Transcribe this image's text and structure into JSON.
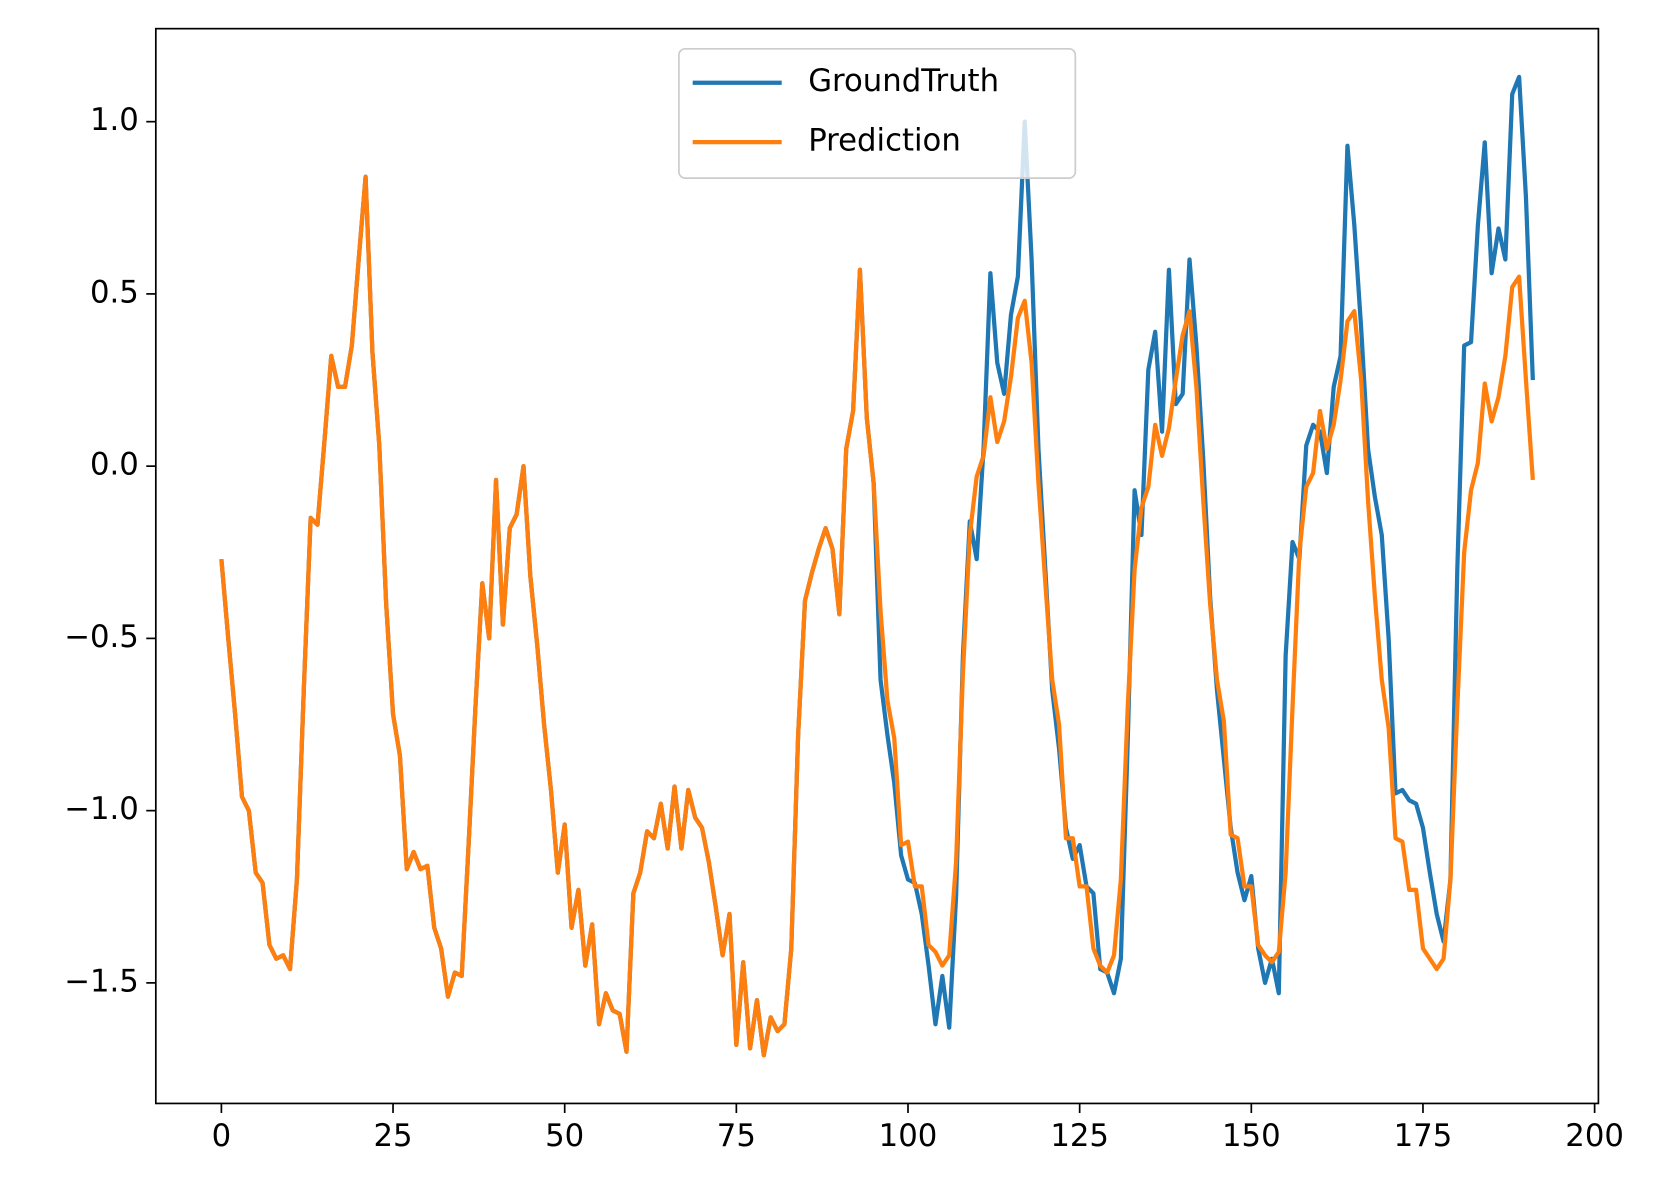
{
  "chart_data": {
    "type": "line",
    "x": [
      0,
      1,
      2,
      3,
      4,
      5,
      6,
      7,
      8,
      9,
      10,
      11,
      12,
      13,
      14,
      15,
      16,
      17,
      18,
      19,
      20,
      21,
      22,
      23,
      24,
      25,
      26,
      27,
      28,
      29,
      30,
      31,
      32,
      33,
      34,
      35,
      36,
      37,
      38,
      39,
      40,
      41,
      42,
      43,
      44,
      45,
      46,
      47,
      48,
      49,
      50,
      51,
      52,
      53,
      54,
      55,
      56,
      57,
      58,
      59,
      60,
      61,
      62,
      63,
      64,
      65,
      66,
      67,
      68,
      69,
      70,
      71,
      72,
      73,
      74,
      75,
      76,
      77,
      78,
      79,
      80,
      81,
      82,
      83,
      84,
      85,
      86,
      87,
      88,
      89,
      90,
      91,
      92,
      93,
      94,
      95,
      96,
      97,
      98,
      99,
      100,
      101,
      102,
      103,
      104,
      105,
      106,
      107,
      108,
      109,
      110,
      111,
      112,
      113,
      114,
      115,
      116,
      117,
      118,
      119,
      120,
      121,
      122,
      123,
      124,
      125,
      126,
      127,
      128,
      129,
      130,
      131,
      132,
      133,
      134,
      135,
      136,
      137,
      138,
      139,
      140,
      141,
      142,
      143,
      144,
      145,
      146,
      147,
      148,
      149,
      150,
      151,
      152,
      153,
      154,
      155,
      156,
      157,
      158,
      159,
      160,
      161,
      162,
      163,
      164,
      165,
      166,
      167,
      168,
      169,
      170,
      171,
      172,
      173,
      174,
      175,
      176,
      177,
      178,
      179,
      180,
      181,
      182,
      183,
      184,
      185,
      186,
      187,
      188,
      189,
      190,
      191
    ],
    "series": [
      {
        "name": "GroundTruth",
        "color": "#1f77b4",
        "values": [
          -0.27,
          -0.5,
          -0.72,
          -0.96,
          -1.0,
          -1.18,
          -1.21,
          -1.39,
          -1.43,
          -1.42,
          -1.46,
          -1.2,
          -0.65,
          -0.15,
          -0.17,
          0.07,
          0.32,
          0.23,
          0.23,
          0.35,
          0.6,
          0.84,
          0.33,
          0.06,
          -0.4,
          -0.72,
          -0.84,
          -1.17,
          -1.12,
          -1.17,
          -1.16,
          -1.34,
          -1.4,
          -1.54,
          -1.47,
          -1.48,
          -1.1,
          -0.7,
          -0.34,
          -0.5,
          -0.04,
          -0.46,
          -0.18,
          -0.14,
          0.0,
          -0.32,
          -0.52,
          -0.75,
          -0.94,
          -1.18,
          -1.04,
          -1.34,
          -1.23,
          -1.45,
          -1.33,
          -1.62,
          -1.53,
          -1.58,
          -1.59,
          -1.7,
          -1.24,
          -1.18,
          -1.06,
          -1.08,
          -0.98,
          -1.11,
          -0.93,
          -1.11,
          -0.94,
          -1.02,
          -1.05,
          -1.15,
          -1.28,
          -1.42,
          -1.3,
          -1.68,
          -1.44,
          -1.69,
          -1.55,
          -1.71,
          -1.6,
          -1.64,
          -1.62,
          -1.4,
          -0.78,
          -0.39,
          -0.31,
          -0.24,
          -0.18,
          -0.24,
          -0.43,
          0.05,
          0.16,
          0.57,
          0.14,
          -0.05,
          -0.62,
          -0.78,
          -0.92,
          -1.13,
          -1.2,
          -1.21,
          -1.3,
          -1.45,
          -1.62,
          -1.48,
          -1.63,
          -1.25,
          -0.55,
          -0.16,
          -0.27,
          0.05,
          0.56,
          0.3,
          0.21,
          0.44,
          0.55,
          1.0,
          0.6,
          0.05,
          -0.3,
          -0.65,
          -0.82,
          -1.05,
          -1.14,
          -1.1,
          -1.22,
          -1.24,
          -1.46,
          -1.47,
          -1.53,
          -1.43,
          -0.8,
          -0.07,
          -0.2,
          0.28,
          0.39,
          0.1,
          0.57,
          0.18,
          0.21,
          0.6,
          0.35,
          0.02,
          -0.38,
          -0.65,
          -0.85,
          -1.05,
          -1.18,
          -1.26,
          -1.19,
          -1.4,
          -1.5,
          -1.43,
          -1.53,
          -0.55,
          -0.22,
          -0.27,
          0.06,
          0.12,
          0.1,
          -0.02,
          0.23,
          0.32,
          0.93,
          0.7,
          0.4,
          0.05,
          -0.09,
          -0.2,
          -0.5,
          -0.95,
          -0.94,
          -0.97,
          -0.98,
          -1.05,
          -1.18,
          -1.3,
          -1.38,
          -1.2,
          -0.3,
          0.35,
          0.36,
          0.7,
          0.94,
          0.56,
          0.69,
          0.6,
          1.08,
          1.13,
          0.78,
          0.25
        ]
      },
      {
        "name": "Prediction",
        "color": "#ff7f0e",
        "values": [
          -0.27,
          -0.5,
          -0.72,
          -0.96,
          -1.0,
          -1.18,
          -1.21,
          -1.39,
          -1.43,
          -1.42,
          -1.46,
          -1.2,
          -0.65,
          -0.15,
          -0.17,
          0.07,
          0.32,
          0.23,
          0.23,
          0.35,
          0.6,
          0.84,
          0.33,
          0.06,
          -0.4,
          -0.72,
          -0.84,
          -1.17,
          -1.12,
          -1.17,
          -1.16,
          -1.34,
          -1.4,
          -1.54,
          -1.47,
          -1.48,
          -1.1,
          -0.7,
          -0.34,
          -0.5,
          -0.04,
          -0.46,
          -0.18,
          -0.14,
          0.0,
          -0.32,
          -0.52,
          -0.75,
          -0.94,
          -1.18,
          -1.04,
          -1.34,
          -1.23,
          -1.45,
          -1.33,
          -1.62,
          -1.53,
          -1.58,
          -1.59,
          -1.7,
          -1.24,
          -1.18,
          -1.06,
          -1.08,
          -0.98,
          -1.11,
          -0.93,
          -1.11,
          -0.94,
          -1.02,
          -1.05,
          -1.15,
          -1.28,
          -1.42,
          -1.3,
          -1.68,
          -1.44,
          -1.69,
          -1.55,
          -1.71,
          -1.6,
          -1.64,
          -1.62,
          -1.4,
          -0.78,
          -0.39,
          -0.31,
          -0.24,
          -0.18,
          -0.24,
          -0.43,
          0.05,
          0.16,
          0.57,
          0.14,
          -0.05,
          -0.42,
          -0.68,
          -0.79,
          -1.1,
          -1.09,
          -1.22,
          -1.22,
          -1.39,
          -1.41,
          -1.45,
          -1.42,
          -1.15,
          -0.6,
          -0.2,
          -0.03,
          0.03,
          0.2,
          0.07,
          0.13,
          0.26,
          0.43,
          0.48,
          0.3,
          -0.05,
          -0.34,
          -0.62,
          -0.75,
          -1.08,
          -1.08,
          -1.22,
          -1.22,
          -1.4,
          -1.45,
          -1.47,
          -1.42,
          -1.2,
          -0.7,
          -0.3,
          -0.12,
          -0.06,
          0.12,
          0.03,
          0.11,
          0.25,
          0.38,
          0.45,
          0.23,
          -0.1,
          -0.4,
          -0.62,
          -0.74,
          -1.07,
          -1.08,
          -1.22,
          -1.22,
          -1.39,
          -1.42,
          -1.44,
          -1.41,
          -1.18,
          -0.7,
          -0.25,
          -0.06,
          -0.02,
          0.16,
          0.05,
          0.12,
          0.25,
          0.42,
          0.45,
          0.25,
          -0.1,
          -0.38,
          -0.62,
          -0.76,
          -1.08,
          -1.09,
          -1.23,
          -1.23,
          -1.4,
          -1.43,
          -1.46,
          -1.43,
          -1.2,
          -0.7,
          -0.25,
          -0.07,
          0.01,
          0.24,
          0.13,
          0.2,
          0.32,
          0.52,
          0.55,
          0.25,
          -0.04
        ]
      }
    ],
    "xlim": [
      -9.55,
      200.55
    ],
    "ylim": [
      -1.85,
      1.27
    ],
    "xticks": [
      0,
      25,
      50,
      75,
      100,
      125,
      150,
      175,
      200
    ],
    "yticks": [
      {
        "value": -1.5,
        "label": "−1.5"
      },
      {
        "value": -1.0,
        "label": "−1.0"
      },
      {
        "value": -0.5,
        "label": "−0.5"
      },
      {
        "value": 0.0,
        "label": "0.0"
      },
      {
        "value": 0.5,
        "label": "0.5"
      },
      {
        "value": 1.0,
        "label": "1.0"
      }
    ],
    "legend": "upper center"
  }
}
